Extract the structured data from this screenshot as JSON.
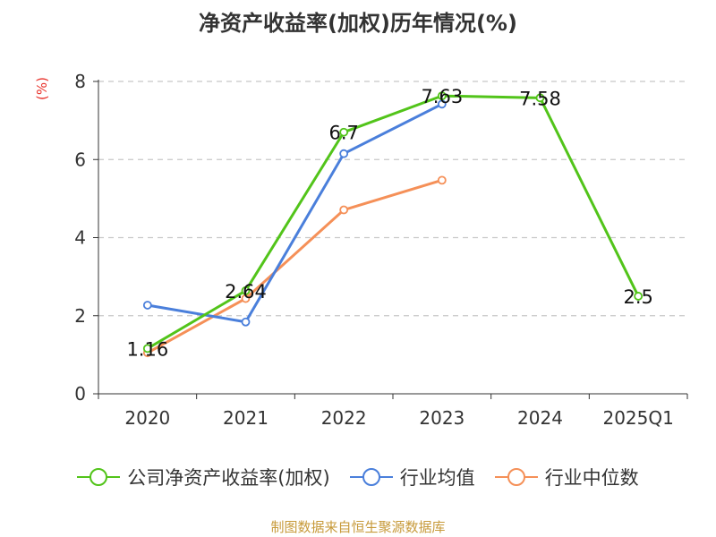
{
  "chart_data": {
    "type": "line",
    "title": "净资产收益率(加权)历年情况(%)",
    "ylabel": "(%)",
    "xlabel": "",
    "categories": [
      "2020",
      "2021",
      "2022",
      "2023",
      "2024",
      "2025Q1"
    ],
    "ylim": [
      0,
      8
    ],
    "yticks": [
      0,
      2,
      4,
      6,
      8
    ],
    "grid": true,
    "legend_position": "bottom",
    "series": [
      {
        "name": "公司净资产收益率(加权)",
        "color": "#52c41a",
        "values": [
          1.16,
          2.64,
          6.7,
          7.63,
          7.58,
          2.5
        ],
        "show_labels": true,
        "labels": [
          "1.16",
          "2.64",
          "6.7",
          "7.63",
          "7.58",
          "2.5"
        ],
        "gaps_after": [
          4
        ]
      },
      {
        "name": "行业均值",
        "color": "#4a7fdb",
        "values": [
          2.27,
          1.84,
          6.15,
          7.42,
          null,
          null
        ],
        "show_labels": false
      },
      {
        "name": "行业中位数",
        "color": "#f59058",
        "values": [
          1.05,
          2.44,
          4.71,
          5.47,
          null,
          null
        ],
        "show_labels": false
      }
    ]
  },
  "footer": {
    "source": "制图数据来自恒生聚源数据库"
  }
}
